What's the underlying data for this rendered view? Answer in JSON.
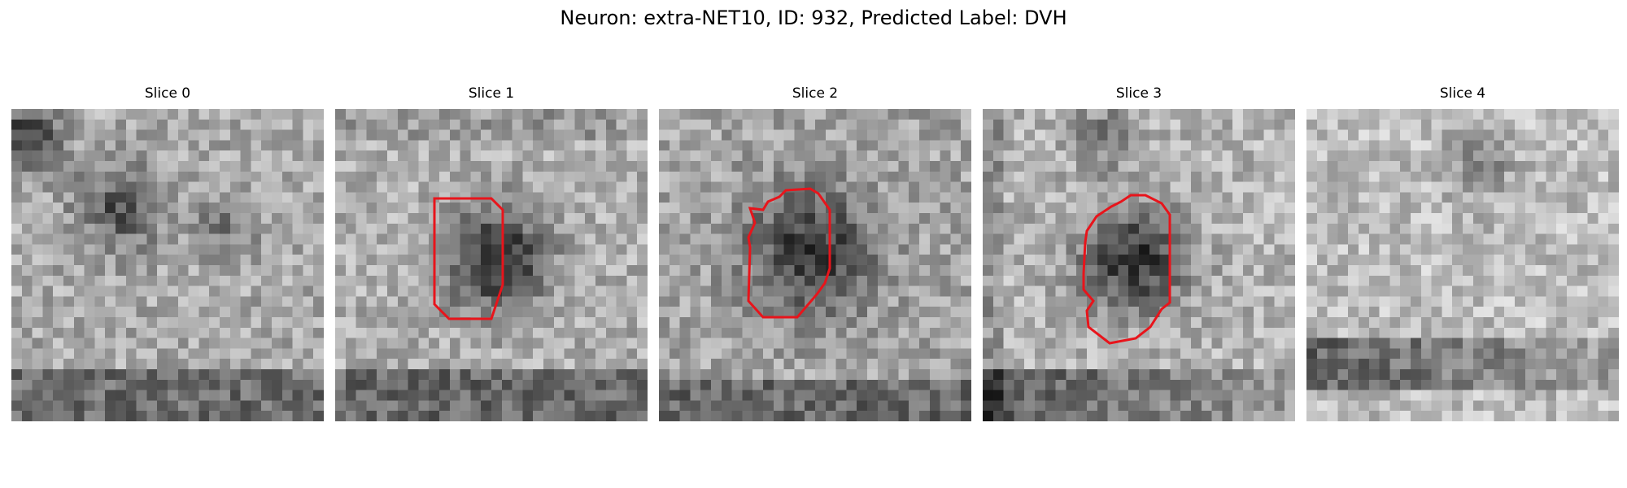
{
  "figure": {
    "title": "Neuron: extra-NET10, ID: 932, Predicted Label: DVH"
  },
  "outline_color": "#e8141b",
  "panels": [
    {
      "title": "Slice 0",
      "has_outline": false
    },
    {
      "title": "Slice 1",
      "has_outline": true
    },
    {
      "title": "Slice 2",
      "has_outline": true
    },
    {
      "title": "Slice 3",
      "has_outline": true
    },
    {
      "title": "Slice 4",
      "has_outline": false
    }
  ]
}
